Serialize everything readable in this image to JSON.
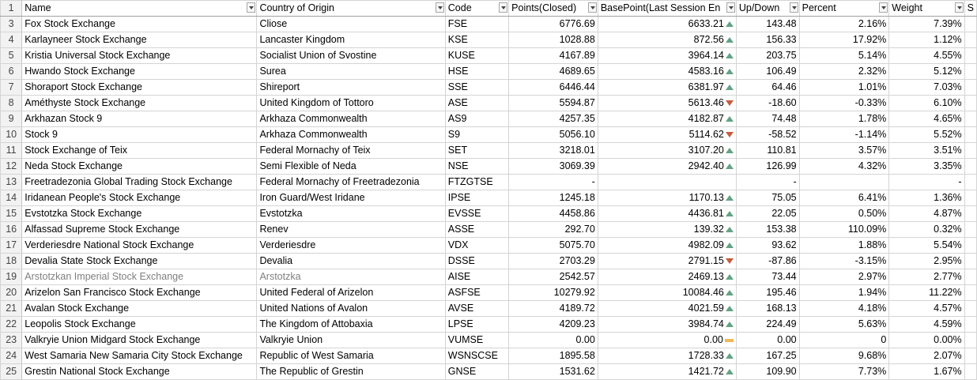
{
  "headers": {
    "row_number": "1",
    "columns": [
      "Name",
      "Country of Origin",
      "Code",
      "Points(Closed)",
      "BasePoint(Last Session En",
      "Up/Down",
      "Percent",
      "Weight",
      "S"
    ]
  },
  "rows": [
    {
      "rn": "3",
      "name": "Fox Stock Exchange",
      "country": "Cliose",
      "code": "FSE",
      "points": "6776.69",
      "base": "6633.21",
      "dir": "up",
      "updown": "143.48",
      "percent": "2.16%",
      "weight": "7.39%"
    },
    {
      "rn": "4",
      "name": "Karlayneer Stock Exchange",
      "country": "Lancaster Kingdom",
      "code": "KSE",
      "points": "1028.88",
      "base": "872.56",
      "dir": "up",
      "updown": "156.33",
      "percent": "17.92%",
      "weight": "1.12%"
    },
    {
      "rn": "5",
      "name": "Kristia Universal Stock Exchange",
      "country": "Socialist Union of Svostine",
      "code": "KUSE",
      "points": "4167.89",
      "base": "3964.14",
      "dir": "up",
      "updown": "203.75",
      "percent": "5.14%",
      "weight": "4.55%"
    },
    {
      "rn": "6",
      "name": "Hwando Stock Exchange",
      "country": "Surea",
      "code": "HSE",
      "points": "4689.65",
      "base": "4583.16",
      "dir": "up",
      "updown": "106.49",
      "percent": "2.32%",
      "weight": "5.12%"
    },
    {
      "rn": "7",
      "name": "Shoraport Stock Exchange",
      "country": "Shireport",
      "code": "SSE",
      "points": "6446.44",
      "base": "6381.97",
      "dir": "up",
      "updown": "64.46",
      "percent": "1.01%",
      "weight": "7.03%"
    },
    {
      "rn": "8",
      "name": "Améthyste Stock Exchange",
      "country": "United Kingdom of Tottoro",
      "code": "ASE",
      "points": "5594.87",
      "base": "5613.46",
      "dir": "down",
      "updown": "-18.60",
      "percent": "-0.33%",
      "weight": "6.10%"
    },
    {
      "rn": "9",
      "name": "Arkhazan Stock 9",
      "country": "Arkhaza Commonwealth",
      "code": "AS9",
      "points": "4257.35",
      "base": "4182.87",
      "dir": "up",
      "updown": "74.48",
      "percent": "1.78%",
      "weight": "4.65%"
    },
    {
      "rn": "10",
      "name": "Stock 9",
      "country": "Arkhaza Commonwealth",
      "code": "S9",
      "points": "5056.10",
      "base": "5114.62",
      "dir": "down",
      "updown": "-58.52",
      "percent": "-1.14%",
      "weight": "5.52%"
    },
    {
      "rn": "11",
      "name": "Stock Exchange of Teix",
      "country": "Federal Mornachy of Teix",
      "code": "SET",
      "points": "3218.01",
      "base": "3107.20",
      "dir": "up",
      "updown": "110.81",
      "percent": "3.57%",
      "weight": "3.51%"
    },
    {
      "rn": "12",
      "name": "Neda Stock Exchange",
      "country": "Semi Flexible of Neda",
      "code": "NSE",
      "points": "3069.39",
      "base": "2942.40",
      "dir": "up",
      "updown": "126.99",
      "percent": "4.32%",
      "weight": "3.35%"
    },
    {
      "rn": "13",
      "name": "Freetradezonia Global Trading Stock Exchange",
      "country": "Federal Mornachy of Freetradezonia",
      "code": "FTZGTSE",
      "points": "-",
      "base": "",
      "dir": "none",
      "updown": "-",
      "percent": "",
      "weight": "-"
    },
    {
      "rn": "14",
      "name": "Iridanean People's Stock Exchange",
      "country": "Iron Guard/West Iridane",
      "code": "IPSE",
      "points": "1245.18",
      "base": "1170.13",
      "dir": "up",
      "updown": "75.05",
      "percent": "6.41%",
      "weight": "1.36%"
    },
    {
      "rn": "15",
      "name": "Evstotzka Stock Exchange",
      "country": "Evstotzka",
      "code": "EVSSE",
      "points": "4458.86",
      "base": "4436.81",
      "dir": "up",
      "updown": "22.05",
      "percent": "0.50%",
      "weight": "4.87%"
    },
    {
      "rn": "16",
      "name": "Alfassad Supreme Stock Exchange",
      "country": "Renev",
      "code": "ASSE",
      "points": "292.70",
      "base": "139.32",
      "dir": "up",
      "updown": "153.38",
      "percent": "110.09%",
      "weight": "0.32%"
    },
    {
      "rn": "17",
      "name": "Verderiesdre National Stock Exchange",
      "country": "Verderiesdre",
      "code": "VDX",
      "points": "5075.70",
      "base": "4982.09",
      "dir": "up",
      "updown": "93.62",
      "percent": "1.88%",
      "weight": "5.54%"
    },
    {
      "rn": "18",
      "name": "Devalia State Stock Exchange",
      "country": "Devalia",
      "code": "DSSE",
      "points": "2703.29",
      "base": "2791.15",
      "dir": "down",
      "updown": "-87.86",
      "percent": "-3.15%",
      "weight": "2.95%"
    },
    {
      "rn": "19",
      "name": "Arstotzkan Imperial Stock Exchange",
      "country": "Arstotzka",
      "code": "AISE",
      "points": "2542.57",
      "base": "2469.13",
      "dir": "up",
      "updown": "73.44",
      "percent": "2.97%",
      "weight": "2.77%",
      "grey": true
    },
    {
      "rn": "20",
      "name": "Arizelon San Francisco Stock Exchange",
      "country": "United Federal of Arizelon",
      "code": "ASFSE",
      "points": "10279.92",
      "base": "10084.46",
      "dir": "up",
      "updown": "195.46",
      "percent": "1.94%",
      "weight": "11.22%"
    },
    {
      "rn": "21",
      "name": "Avalan Stock Exchange",
      "country": "United Nations of Avalon",
      "code": "AVSE",
      "points": "4189.72",
      "base": "4021.59",
      "dir": "up",
      "updown": "168.13",
      "percent": "4.18%",
      "weight": "4.57%"
    },
    {
      "rn": "22",
      "name": "Leopolis Stock Exchange",
      "country": "The Kingdom of Attobaxia",
      "code": "LPSE",
      "points": "4209.23",
      "base": "3984.74",
      "dir": "up",
      "updown": "224.49",
      "percent": "5.63%",
      "weight": "4.59%"
    },
    {
      "rn": "23",
      "name": "Valkryie Union Midgard Stock Exchange",
      "country": "Valkryie Union",
      "code": "VUMSE",
      "points": "0.00",
      "base": "0.00",
      "dir": "flat",
      "updown": "0.00",
      "percent": "0",
      "weight": "0.00%"
    },
    {
      "rn": "24",
      "name": "West Samaria New Samaria City Stock Exchange",
      "country": "Republic of West Samaria",
      "code": "WSNSCSE",
      "points": "1895.58",
      "base": "1728.33",
      "dir": "up",
      "updown": "167.25",
      "percent": "9.68%",
      "weight": "2.07%"
    },
    {
      "rn": "25",
      "name": "Grestin National Stock Exchange",
      "country": "The Republic of Grestin",
      "code": "GNSE",
      "points": "1531.62",
      "base": "1421.72",
      "dir": "up",
      "updown": "109.90",
      "percent": "7.73%",
      "weight": "1.67%"
    }
  ],
  "colors": {
    "up": "#63a384",
    "down": "#c75b3b",
    "flat": "#f0b859"
  }
}
